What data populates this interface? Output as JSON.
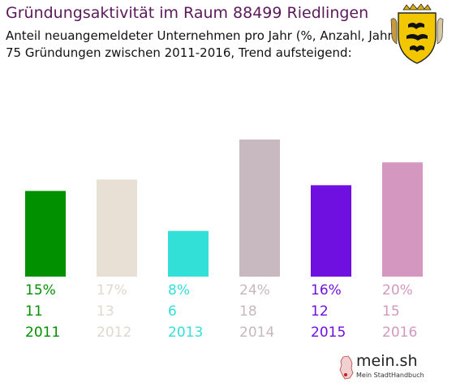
{
  "header": {
    "title": "Gründungsaktivität im Raum 88499 Riedlingen",
    "subtitle_line1": "Anteil neuangemeldeter Unternehmen pro Jahr (%, Anzahl, Jahr)",
    "subtitle_line2": "75 Gründungen zwischen 2011-2016, Trend aufsteigend:"
  },
  "branding": {
    "name": "mein.sh",
    "tagline": "Mein StadtHandbuch",
    "emblem": "coat-of-arms-baden-wuerttemberg"
  },
  "chart_data": {
    "type": "bar",
    "categories": [
      "2011",
      "2012",
      "2013",
      "2014",
      "2015",
      "2016"
    ],
    "values": [
      15,
      17,
      8,
      24,
      16,
      20
    ],
    "percent_labels": [
      "15%",
      "17%",
      "8%",
      "24%",
      "16%",
      "20%"
    ],
    "counts": [
      "11",
      "13",
      "6",
      "18",
      "12",
      "15"
    ],
    "colors": [
      "#009000",
      "#e8e0d4",
      "#33e0d8",
      "#c8b8c0",
      "#7010e0",
      "#d498c0"
    ],
    "title": "Gründungsaktivität im Raum 88499 Riedlingen",
    "xlabel": "",
    "ylabel": "",
    "ylim": [
      0,
      24
    ],
    "grid": false,
    "legend": "none"
  }
}
